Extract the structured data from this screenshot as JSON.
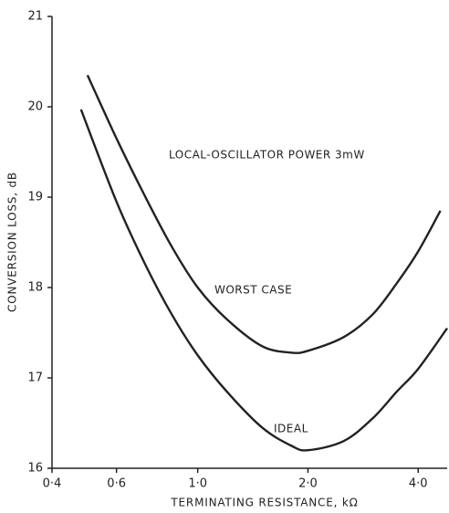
{
  "chart_data": {
    "type": "line",
    "xlabel": "TERMINATING RESISTANCE, kΩ",
    "ylabel": "CONVERSION LOSS, dB",
    "xscale": "log",
    "xlim": [
      0.4,
      4.8
    ],
    "ylim": [
      16,
      21
    ],
    "xticks": [
      {
        "value": 0.4,
        "label": "0·4"
      },
      {
        "value": 0.6,
        "label": "0·6"
      },
      {
        "value": 1.0,
        "label": "1·0"
      },
      {
        "value": 2.0,
        "label": "2·0"
      },
      {
        "value": 4.0,
        "label": "4·0"
      }
    ],
    "yticks": [
      16,
      17,
      18,
      19,
      20,
      21
    ],
    "annotations": [
      "LOCAL-OSCILLATOR POWER 3mW",
      "WORST CASE",
      "IDEAL"
    ],
    "series": [
      {
        "name": "WORST CASE",
        "color": "#222222",
        "x": [
          0.5,
          0.6,
          0.72,
          0.85,
          1.0,
          1.2,
          1.5,
          1.8,
          2.0,
          2.5,
          3.0,
          3.5,
          4.0,
          4.6
        ],
        "values": [
          20.35,
          19.65,
          19.0,
          18.45,
          18.0,
          17.65,
          17.35,
          17.28,
          17.3,
          17.45,
          17.7,
          18.05,
          18.4,
          18.85
        ]
      },
      {
        "name": "IDEAL",
        "color": "#222222",
        "x": [
          0.48,
          0.6,
          0.72,
          0.85,
          1.0,
          1.2,
          1.5,
          1.8,
          2.0,
          2.5,
          3.0,
          3.5,
          4.0,
          4.8
        ],
        "values": [
          19.97,
          18.95,
          18.25,
          17.7,
          17.25,
          16.85,
          16.45,
          16.25,
          16.2,
          16.3,
          16.55,
          16.85,
          17.1,
          17.55
        ]
      }
    ]
  }
}
